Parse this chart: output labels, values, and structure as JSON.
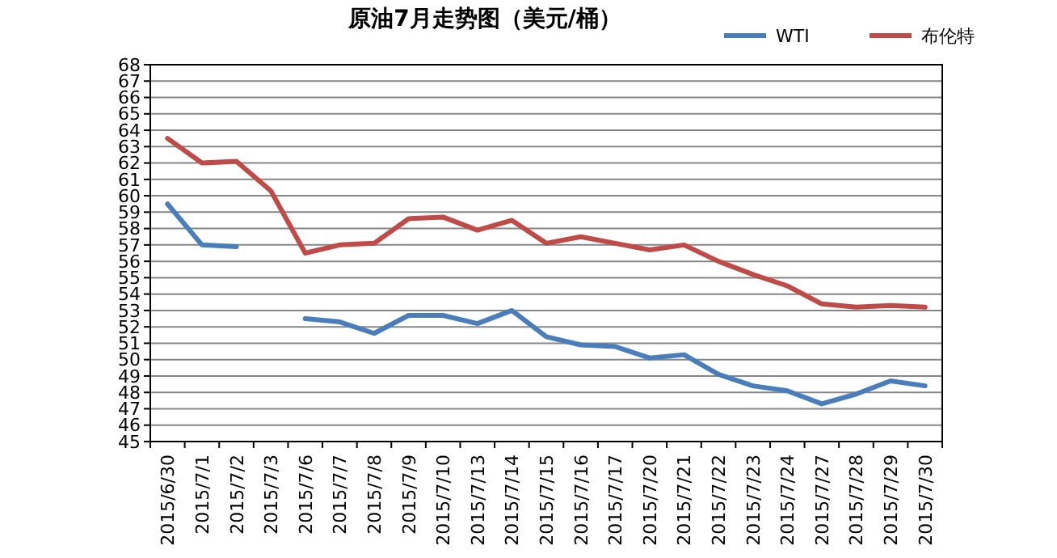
{
  "chart_data": {
    "type": "line",
    "title": "原油7月走势图（美元/桶）",
    "categories": [
      "2015/6/30",
      "2015/7/1",
      "2015/7/2",
      "2015/7/3",
      "2015/7/6",
      "2015/7/7",
      "2015/7/8",
      "2015/7/9",
      "2015/7/10",
      "2015/7/13",
      "2015/7/14",
      "2015/7/15",
      "2015/7/16",
      "2015/7/17",
      "2015/7/20",
      "2015/7/21",
      "2015/7/22",
      "2015/7/23",
      "2015/7/24",
      "2015/7/27",
      "2015/7/28",
      "2015/7/29",
      "2015/7/30"
    ],
    "series": [
      {
        "name": "WTI",
        "color": "#4a7ebb",
        "values": [
          59.5,
          57.0,
          56.9,
          null,
          52.5,
          52.3,
          51.6,
          52.7,
          52.7,
          52.2,
          53.0,
          51.4,
          50.9,
          50.8,
          50.1,
          50.3,
          49.1,
          48.4,
          48.1,
          47.3,
          47.9,
          48.7,
          48.4
        ]
      },
      {
        "name": "布伦特",
        "color": "#be4b48",
        "values": [
          63.5,
          62.0,
          62.1,
          60.3,
          56.5,
          57.0,
          57.1,
          58.6,
          58.7,
          57.9,
          58.5,
          57.1,
          57.5,
          57.1,
          56.7,
          57.0,
          56.0,
          55.2,
          54.5,
          53.4,
          53.2,
          53.3,
          53.2
        ]
      }
    ],
    "ylim": [
      45,
      68
    ],
    "yticks": [
      45,
      46,
      47,
      48,
      49,
      50,
      51,
      52,
      53,
      54,
      55,
      56,
      57,
      58,
      59,
      60,
      61,
      62,
      63,
      64,
      65,
      66,
      67,
      68
    ],
    "grid": "y",
    "legend": "top right",
    "marker": "none",
    "line_style": "solid"
  }
}
